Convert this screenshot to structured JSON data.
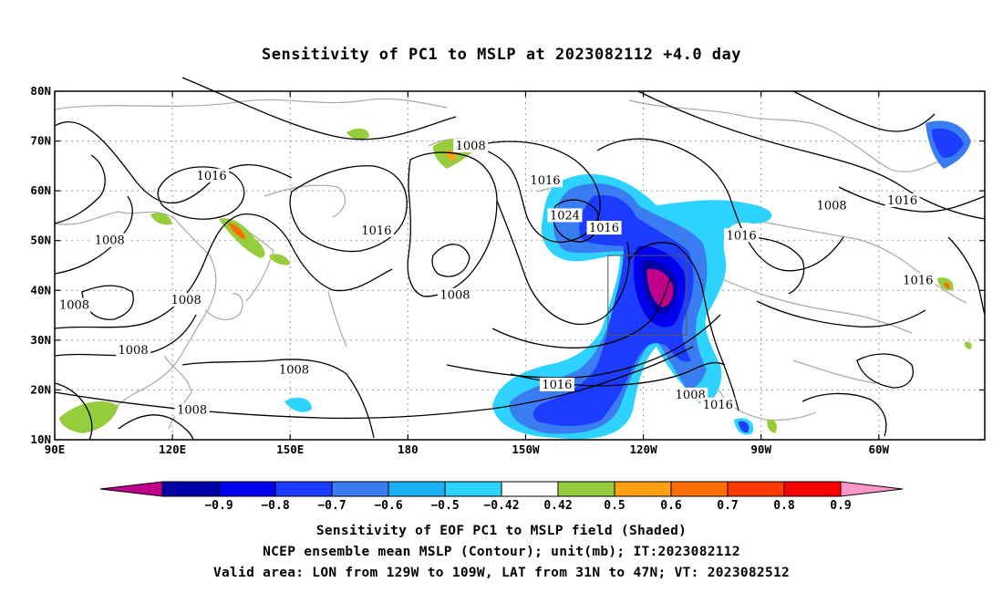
{
  "title": "Sensitivity of PC1 to MSLP at 2023082112 +4.0 day",
  "lat_ticks": [
    {
      "value": 80,
      "label": "80N"
    },
    {
      "value": 70,
      "label": "70N"
    },
    {
      "value": 60,
      "label": "60N"
    },
    {
      "value": 50,
      "label": "50N"
    },
    {
      "value": 40,
      "label": "40N"
    },
    {
      "value": 30,
      "label": "30N"
    },
    {
      "value": 20,
      "label": "20N"
    },
    {
      "value": 10,
      "label": "10N"
    }
  ],
  "lon_ticks": [
    {
      "value": 90,
      "label": "90E"
    },
    {
      "value": 120,
      "label": "120E"
    },
    {
      "value": 150,
      "label": "150E"
    },
    {
      "value": 180,
      "label": "180"
    },
    {
      "value": 210,
      "label": "150W"
    },
    {
      "value": 240,
      "label": "120W"
    },
    {
      "value": 270,
      "label": "90W"
    },
    {
      "value": 300,
      "label": "60W"
    }
  ],
  "extent": {
    "lon_min": 90,
    "lon_max": 327,
    "lat_min": 10,
    "lat_max": 80
  },
  "valid_box": {
    "lon_min": 231,
    "lon_max": 251,
    "lat_min": 31,
    "lat_max": 47
  },
  "contour_labels": [
    {
      "text": "1008",
      "lon": 110,
      "lat": 28
    },
    {
      "text": "1016",
      "lon": 130,
      "lat": 63
    },
    {
      "text": "1008",
      "lon": 104,
      "lat": 50
    },
    {
      "text": "1008",
      "lon": 95,
      "lat": 37
    },
    {
      "text": "1008",
      "lon": 123.5,
      "lat": 38
    },
    {
      "text": "1008",
      "lon": 151,
      "lat": 24
    },
    {
      "text": "1008",
      "lon": 125,
      "lat": 16
    },
    {
      "text": "1016",
      "lon": 172,
      "lat": 52
    },
    {
      "text": "1008",
      "lon": 192,
      "lat": 39
    },
    {
      "text": "1008",
      "lon": 196,
      "lat": 69
    },
    {
      "text": "1016",
      "lon": 215,
      "lat": 62
    },
    {
      "text": "1024",
      "lon": 220,
      "lat": 55
    },
    {
      "text": "1016",
      "lon": 230,
      "lat": 52.5
    },
    {
      "text": "1016",
      "lon": 218,
      "lat": 21
    },
    {
      "text": "1008",
      "lon": 252,
      "lat": 19
    },
    {
      "text": "1016",
      "lon": 259,
      "lat": 17
    },
    {
      "text": "1016",
      "lon": 265,
      "lat": 51
    },
    {
      "text": "1008",
      "lon": 288,
      "lat": 57
    },
    {
      "text": "1016",
      "lon": 306,
      "lat": 58
    },
    {
      "text": "1016",
      "lon": 310,
      "lat": 42
    }
  ],
  "colorbar": {
    "colors": [
      "#c0008a",
      "#0000a8",
      "#0000ee",
      "#1c3cff",
      "#3a7cf2",
      "#1ab2f2",
      "#2ed2ff",
      "#ffffff",
      "#96cd3c",
      "#ffa014",
      "#ff6e00",
      "#ff3a00",
      "#ff0000",
      "#ff96c8"
    ],
    "labels": [
      "−0.9",
      "−0.8",
      "−0.7",
      "−0.6",
      "−0.5",
      "−0.42",
      "0.42",
      "0.5",
      "0.6",
      "0.7",
      "0.8",
      "0.9"
    ]
  },
  "caption": {
    "line1": "Sensitivity of EOF PC1 to MSLP field (Shaded)",
    "line2": "NCEP ensemble mean MSLP (Contour); unit(mb); IT:2023082112",
    "line3": "Valid area: LON from 129W to 109W, LAT from 31N to 47N; VT: 2023082512"
  }
}
